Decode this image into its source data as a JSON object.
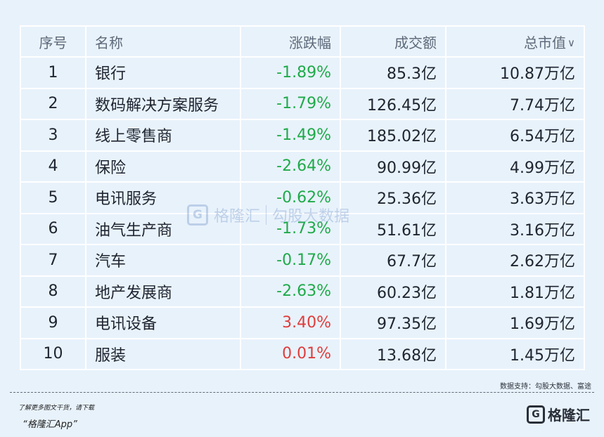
{
  "table": {
    "headers": {
      "index": "序号",
      "name": "名称",
      "change": "涨跌幅",
      "volume": "成交额",
      "market_cap": "总市值"
    },
    "rows": [
      {
        "index": "1",
        "name": "银行",
        "change": "-1.89%",
        "direction": "down",
        "volume": "85.3亿",
        "market_cap": "10.87万亿"
      },
      {
        "index": "2",
        "name": "数码解决方案服务",
        "change": "-1.79%",
        "direction": "down",
        "volume": "126.45亿",
        "market_cap": "7.74万亿"
      },
      {
        "index": "3",
        "name": "线上零售商",
        "change": "-1.49%",
        "direction": "down",
        "volume": "185.02亿",
        "market_cap": "6.54万亿"
      },
      {
        "index": "4",
        "name": "保险",
        "change": "-2.64%",
        "direction": "down",
        "volume": "90.99亿",
        "market_cap": "4.99万亿"
      },
      {
        "index": "5",
        "name": "电讯服务",
        "change": "-0.62%",
        "direction": "down",
        "volume": "25.36亿",
        "market_cap": "3.63万亿"
      },
      {
        "index": "6",
        "name": "油气生产商",
        "change": "-1.73%",
        "direction": "down",
        "volume": "51.61亿",
        "market_cap": "3.16万亿"
      },
      {
        "index": "7",
        "name": "汽车",
        "change": "-0.17%",
        "direction": "down",
        "volume": "67.7亿",
        "market_cap": "2.62万亿"
      },
      {
        "index": "8",
        "name": "地产发展商",
        "change": "-2.63%",
        "direction": "down",
        "volume": "60.23亿",
        "market_cap": "1.81万亿"
      },
      {
        "index": "9",
        "name": "电讯设备",
        "change": "3.40%",
        "direction": "up",
        "volume": "97.35亿",
        "market_cap": "1.69万亿"
      },
      {
        "index": "10",
        "name": "服装",
        "change": "0.01%",
        "direction": "up",
        "volume": "13.68亿",
        "market_cap": "1.45万亿"
      }
    ],
    "sort_icon": "chevron-down-icon"
  },
  "watermark": {
    "logo_glyph": "G",
    "brand": "格隆汇",
    "product": "勾股大数据"
  },
  "footer": {
    "source": "数据支持：勾股大数据、富途",
    "promo_line1": "了解更多图文干货，请下载",
    "promo_line2": "“格隆汇App”",
    "logo_glyph": "G",
    "logo_text": "格隆汇"
  },
  "colors": {
    "background": "#e8f2fb",
    "negative": "#1faa4a",
    "positive": "#de3d3d",
    "grid": "#ffffff"
  }
}
